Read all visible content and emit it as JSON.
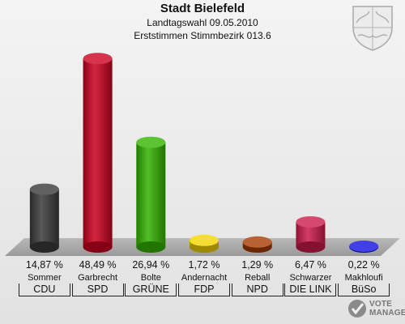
{
  "header": {
    "title": "Stadt Bielefeld",
    "subtitle1": "Landtagswahl 09.05.2010",
    "subtitle2": "Erststimmen Stimmbezirk 013.6"
  },
  "watermark": {
    "line1": "VOTE",
    "line2": "MANAGER"
  },
  "coat_of_arms": "nrw-coat-of-arms",
  "chart_data": {
    "type": "bar",
    "title": "Stadt Bielefeld",
    "subtitle": "Landtagswahl 09.05.2010 Erststimmen Stimmbezirk 013.6",
    "categories": [
      "CDU",
      "SPD",
      "GRÜNE",
      "FDP",
      "NPD",
      "DIE LINKE",
      "BüSo"
    ],
    "candidates": [
      "Sommer",
      "Garbrecht",
      "Bolte",
      "Andernacht",
      "Reball",
      "Schwarzer",
      "Makhloufi"
    ],
    "values": [
      14.87,
      48.49,
      26.94,
      1.72,
      1.29,
      6.47,
      0.22
    ],
    "labels": [
      "14,87 %",
      "48,49 %",
      "26,94 %",
      "1,72 %",
      "1,29 %",
      "6,47 %",
      "0,22 %"
    ],
    "party_labels": [
      "CDU",
      "SPD",
      "GRÜNE",
      "FDP",
      "NPD",
      "DIE LINK",
      "BüSo"
    ],
    "colors": [
      "#3a3a3a",
      "#cc0020",
      "#33b400",
      "#f2d400",
      "#a63a00",
      "#cc1a4a",
      "#1010e0"
    ],
    "ylim": [
      0,
      50
    ],
    "grid": false,
    "legend": "none"
  }
}
